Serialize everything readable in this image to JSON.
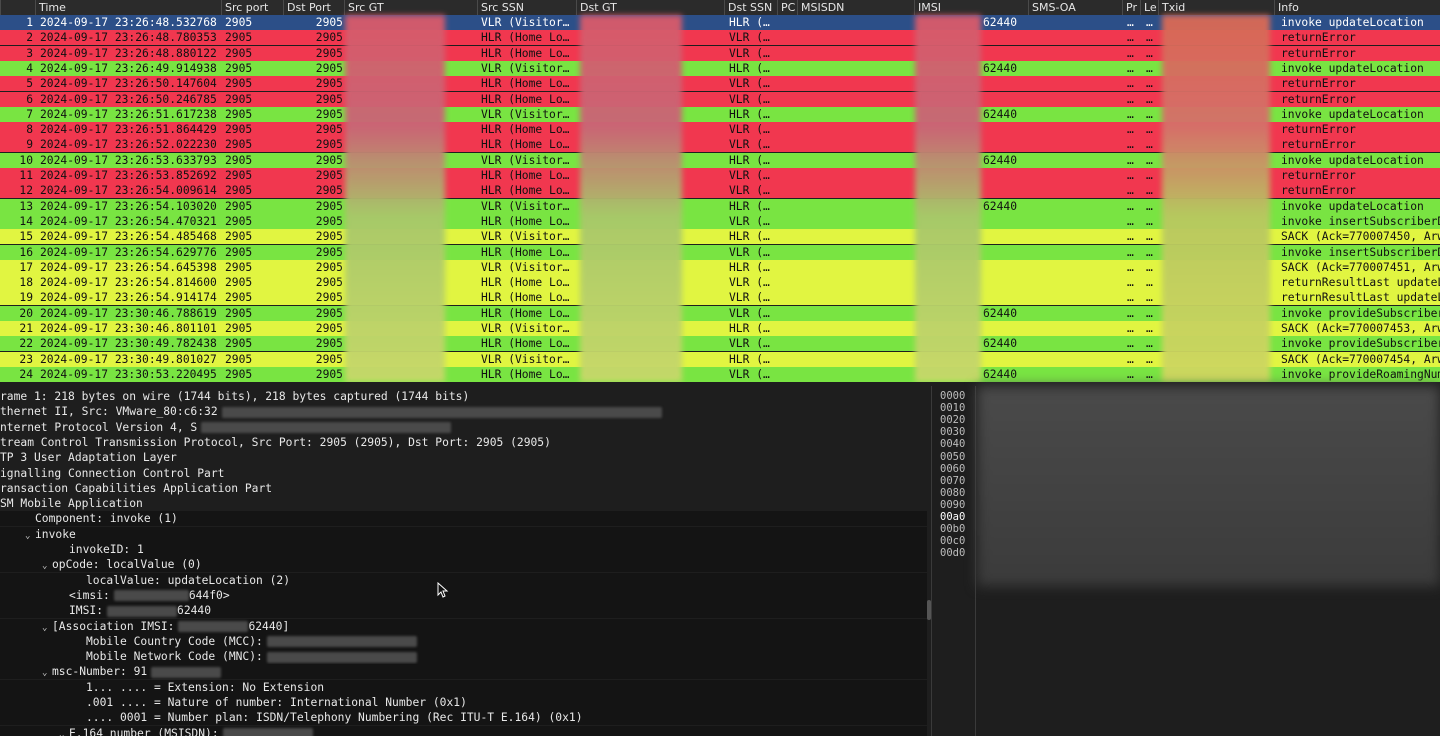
{
  "columns": [
    "",
    "Time",
    "Src port",
    "Dst Port",
    "Src GT",
    "Src SSN",
    "Dst GT",
    "Dst SSN",
    "PC",
    "MSISDN",
    "IMSI",
    "SMS-OA",
    "Pr",
    "Le",
    "Txid",
    "Info"
  ],
  "colors": {
    "red": "#f1374f",
    "green": "#79e442",
    "yellow": "#e1f541",
    "selected": "#2c4f88"
  },
  "packets": [
    {
      "no": "1",
      "time": "2024-09-17 23:26:48.532768",
      "src_port": "2905",
      "dst_port": "2905",
      "src_ssn": "VLR (Visitor…",
      "dst_ssn": "HLR (…",
      "imsi_tail": "62440",
      "pr": "…",
      "le": "…",
      "info": "invoke updateLocation",
      "color": "selected"
    },
    {
      "no": "2",
      "time": "2024-09-17 23:26:48.780353",
      "src_port": "2905",
      "dst_port": "2905",
      "src_ssn": "HLR (Home Lo…",
      "dst_ssn": "VLR (…",
      "imsi_tail": "",
      "pr": "…",
      "le": "…",
      "info": "returnError",
      "color": "red"
    },
    {
      "no": "3",
      "time": "2024-09-17 23:26:48.880122",
      "src_port": "2905",
      "dst_port": "2905",
      "src_ssn": "HLR (Home Lo…",
      "dst_ssn": "VLR (…",
      "imsi_tail": "",
      "pr": "…",
      "le": "…",
      "info": "returnError",
      "color": "red"
    },
    {
      "no": "4",
      "time": "2024-09-17 23:26:49.914938",
      "src_port": "2905",
      "dst_port": "2905",
      "src_ssn": "VLR (Visitor…",
      "dst_ssn": "HLR (…",
      "imsi_tail": "62440",
      "pr": "…",
      "le": "…",
      "info": "invoke updateLocation",
      "color": "green"
    },
    {
      "no": "5",
      "time": "2024-09-17 23:26:50.147604",
      "src_port": "2905",
      "dst_port": "2905",
      "src_ssn": "HLR (Home Lo…",
      "dst_ssn": "VLR (…",
      "imsi_tail": "",
      "pr": "…",
      "le": "…",
      "info": "returnError",
      "color": "red"
    },
    {
      "no": "6",
      "time": "2024-09-17 23:26:50.246785",
      "src_port": "2905",
      "dst_port": "2905",
      "src_ssn": "HLR (Home Lo…",
      "dst_ssn": "VLR (…",
      "imsi_tail": "",
      "pr": "…",
      "le": "…",
      "info": "returnError",
      "color": "red"
    },
    {
      "no": "7",
      "time": "2024-09-17 23:26:51.617238",
      "src_port": "2905",
      "dst_port": "2905",
      "src_ssn": "VLR (Visitor…",
      "dst_ssn": "HLR (…",
      "imsi_tail": "62440",
      "pr": "…",
      "le": "…",
      "info": "invoke updateLocation",
      "color": "green"
    },
    {
      "no": "8",
      "time": "2024-09-17 23:26:51.864429",
      "src_port": "2905",
      "dst_port": "2905",
      "src_ssn": "HLR (Home Lo…",
      "dst_ssn": "VLR (…",
      "imsi_tail": "",
      "pr": "…",
      "le": "…",
      "info": "returnError",
      "color": "red"
    },
    {
      "no": "9",
      "time": "2024-09-17 23:26:52.022230",
      "src_port": "2905",
      "dst_port": "2905",
      "src_ssn": "HLR (Home Lo…",
      "dst_ssn": "VLR (…",
      "imsi_tail": "",
      "pr": "…",
      "le": "…",
      "info": "returnError",
      "color": "red"
    },
    {
      "no": "10",
      "time": "2024-09-17 23:26:53.633793",
      "src_port": "2905",
      "dst_port": "2905",
      "src_ssn": "VLR (Visitor…",
      "dst_ssn": "HLR (…",
      "imsi_tail": "62440",
      "pr": "…",
      "le": "…",
      "info": "invoke updateLocation",
      "color": "green"
    },
    {
      "no": "11",
      "time": "2024-09-17 23:26:53.852692",
      "src_port": "2905",
      "dst_port": "2905",
      "src_ssn": "HLR (Home Lo…",
      "dst_ssn": "VLR (…",
      "imsi_tail": "",
      "pr": "…",
      "le": "…",
      "info": "returnError",
      "color": "red"
    },
    {
      "no": "12",
      "time": "2024-09-17 23:26:54.009614",
      "src_port": "2905",
      "dst_port": "2905",
      "src_ssn": "HLR (Home Lo…",
      "dst_ssn": "VLR (…",
      "imsi_tail": "",
      "pr": "…",
      "le": "…",
      "info": "returnError",
      "color": "red"
    },
    {
      "no": "13",
      "time": "2024-09-17 23:26:54.103020",
      "src_port": "2905",
      "dst_port": "2905",
      "src_ssn": "VLR (Visitor…",
      "dst_ssn": "HLR (…",
      "imsi_tail": "62440",
      "pr": "…",
      "le": "…",
      "info": "invoke updateLocation",
      "color": "green"
    },
    {
      "no": "14",
      "time": "2024-09-17 23:26:54.470321",
      "src_port": "2905",
      "dst_port": "2905",
      "src_ssn": "HLR (Home Lo…",
      "dst_ssn": "VLR (…",
      "imsi_tail": "",
      "pr": "…",
      "le": "…",
      "info": "invoke insertSubscriberD",
      "color": "green"
    },
    {
      "no": "15",
      "time": "2024-09-17 23:26:54.485468",
      "src_port": "2905",
      "dst_port": "2905",
      "src_ssn": "VLR (Visitor…",
      "dst_ssn": "HLR (…",
      "imsi_tail": "",
      "pr": "…",
      "le": "…",
      "info": "SACK (Ack=770007450, Arw",
      "color": "yellow"
    },
    {
      "no": "16",
      "time": "2024-09-17 23:26:54.629776",
      "src_port": "2905",
      "dst_port": "2905",
      "src_ssn": "HLR (Home Lo…",
      "dst_ssn": "VLR (…",
      "imsi_tail": "",
      "pr": "…",
      "le": "…",
      "info": "invoke insertSubscriberD",
      "color": "green"
    },
    {
      "no": "17",
      "time": "2024-09-17 23:26:54.645398",
      "src_port": "2905",
      "dst_port": "2905",
      "src_ssn": "VLR (Visitor…",
      "dst_ssn": "HLR (…",
      "imsi_tail": "",
      "pr": "…",
      "le": "…",
      "info": "SACK (Ack=770007451, Arw",
      "color": "yellow"
    },
    {
      "no": "18",
      "time": "2024-09-17 23:26:54.814600",
      "src_port": "2905",
      "dst_port": "2905",
      "src_ssn": "HLR (Home Lo…",
      "dst_ssn": "VLR (…",
      "imsi_tail": "",
      "pr": "…",
      "le": "…",
      "info": "returnResultLast updateL",
      "color": "yellow"
    },
    {
      "no": "19",
      "time": "2024-09-17 23:26:54.914174",
      "src_port": "2905",
      "dst_port": "2905",
      "src_ssn": "HLR (Home Lo…",
      "dst_ssn": "VLR (…",
      "imsi_tail": "",
      "pr": "…",
      "le": "…",
      "info": "returnResultLast updateL",
      "color": "yellow"
    },
    {
      "no": "20",
      "time": "2024-09-17 23:30:46.788619",
      "src_port": "2905",
      "dst_port": "2905",
      "src_ssn": "HLR (Home Lo…",
      "dst_ssn": "VLR (…",
      "imsi_tail": "62440",
      "pr": "…",
      "le": "…",
      "info": "invoke provideSubscriber",
      "color": "green"
    },
    {
      "no": "21",
      "time": "2024-09-17 23:30:46.801101",
      "src_port": "2905",
      "dst_port": "2905",
      "src_ssn": "VLR (Visitor…",
      "dst_ssn": "HLR (…",
      "imsi_tail": "",
      "pr": "…",
      "le": "…",
      "info": "SACK (Ack=770007453, Arw",
      "color": "yellow"
    },
    {
      "no": "22",
      "time": "2024-09-17 23:30:49.782438",
      "src_port": "2905",
      "dst_port": "2905",
      "src_ssn": "HLR (Home Lo…",
      "dst_ssn": "VLR (…",
      "imsi_tail": "62440",
      "pr": "…",
      "le": "…",
      "info": "invoke provideSubscriber",
      "color": "green"
    },
    {
      "no": "23",
      "time": "2024-09-17 23:30:49.801027",
      "src_port": "2905",
      "dst_port": "2905",
      "src_ssn": "VLR (Visitor…",
      "dst_ssn": "HLR (…",
      "imsi_tail": "",
      "pr": "…",
      "le": "…",
      "info": "SACK (Ack=770007454, Arw",
      "color": "yellow"
    },
    {
      "no": "24",
      "time": "2024-09-17 23:30:53.220495",
      "src_port": "2905",
      "dst_port": "2905",
      "src_ssn": "HLR (Home Lo…",
      "dst_ssn": "VLR (…",
      "imsi_tail": "62440",
      "pr": "…",
      "le": "…",
      "info": "invoke provideRoamingNum",
      "color": "green"
    }
  ],
  "details": [
    {
      "depth": 0,
      "arrow": "",
      "text": "rame 1: 218 bytes on wire (1744 bits), 218 bytes captured (1744 bits)",
      "mask": 0
    },
    {
      "depth": 0,
      "arrow": "",
      "text": "thernet II, Src: VMware_80:c6:32",
      "mask": 440
    },
    {
      "depth": 0,
      "arrow": "",
      "text": "nternet Protocol Version 4, S",
      "mask": 250
    },
    {
      "depth": 0,
      "arrow": "",
      "text": "tream Control Transmission Protocol, Src Port: 2905 (2905), Dst Port: 2905 (2905)",
      "mask": 0
    },
    {
      "depth": 0,
      "arrow": "",
      "text": "TP 3 User Adaptation Layer",
      "mask": 0
    },
    {
      "depth": 0,
      "arrow": "",
      "text": "ignalling Connection Control Part",
      "mask": 0
    },
    {
      "depth": 0,
      "arrow": "",
      "text": "ransaction Capabilities Application Part",
      "mask": 0
    },
    {
      "depth": 0,
      "arrow": "",
      "text": "SM Mobile Application",
      "mask": 0
    },
    {
      "depth": 1,
      "arrow": "",
      "text": "Component: invoke (1)",
      "mask": 0
    },
    {
      "depth": 1,
      "arrow": "v",
      "text": "invoke",
      "mask": 0
    },
    {
      "depth": 3,
      "arrow": "",
      "text": "invokeID: 1",
      "mask": 0
    },
    {
      "depth": 2,
      "arrow": "v",
      "text": "opCode: localValue (0)",
      "mask": 0
    },
    {
      "depth": 4,
      "arrow": "",
      "text": "localValue: updateLocation (2)",
      "mask": 0,
      "selected": true
    },
    {
      "depth": 3,
      "arrow": "",
      "text": "<imsi:",
      "mask": 75,
      "tail": "644f0>"
    },
    {
      "depth": 3,
      "arrow": "",
      "text": "IMSI:",
      "mask": 70,
      "tail": "62440"
    },
    {
      "depth": 2,
      "arrow": "v",
      "text": "[Association IMSI:",
      "mask": 70,
      "tail": "62440]"
    },
    {
      "depth": 4,
      "arrow": "",
      "text": "Mobile Country Code (MCC):",
      "mask": 150
    },
    {
      "depth": 4,
      "arrow": "",
      "text": "Mobile Network Code (MNC):",
      "mask": 150
    },
    {
      "depth": 2,
      "arrow": "v",
      "text": "msc-Number: 91",
      "mask": 70
    },
    {
      "depth": 4,
      "arrow": "",
      "text": "1... .... = Extension: No Extension",
      "mask": 0
    },
    {
      "depth": 4,
      "arrow": "",
      "text": ".001 .... = Nature of number: International Number (0x1)",
      "mask": 0
    },
    {
      "depth": 4,
      "arrow": "",
      "text": ".... 0001 = Number plan: ISDN/Telephony Numbering (Rec ITU-T E.164) (0x1)",
      "mask": 0
    },
    {
      "depth": 3,
      "arrow": "v",
      "text": "E.164 number (MSISDN):",
      "mask": 90
    }
  ],
  "hex_offsets": [
    "0000",
    "0010",
    "0020",
    "0030",
    "0040",
    "0050",
    "0060",
    "0070",
    "0080",
    "0090",
    "00a0",
    "00b0",
    "00c0",
    "00d0"
  ]
}
